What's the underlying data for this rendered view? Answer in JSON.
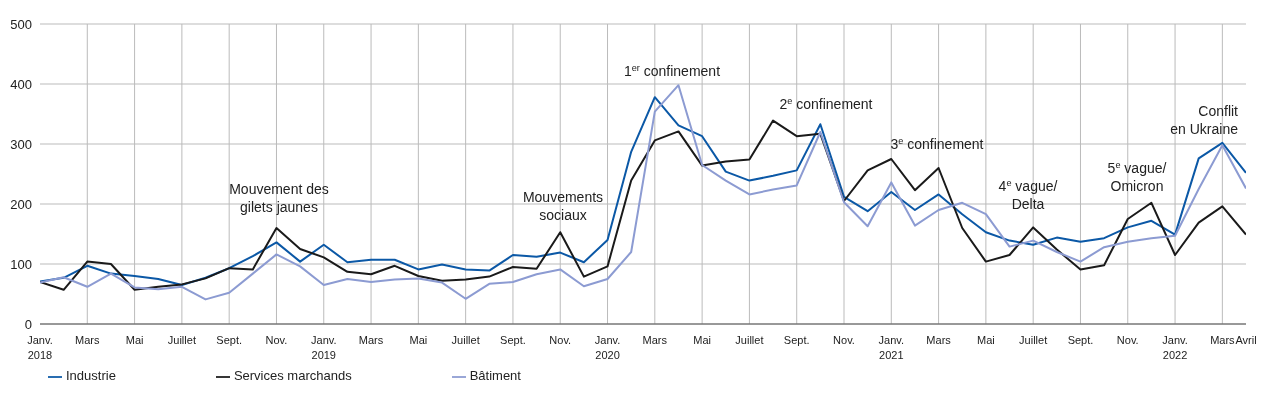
{
  "chart_data": {
    "type": "line",
    "categories": [
      "Janv.\n2018",
      null,
      "Mars",
      null,
      "Mai",
      null,
      "Juillet",
      null,
      "Sept.",
      null,
      "Nov.",
      null,
      "Janv.\n2019",
      null,
      "Mars",
      null,
      "Mai",
      null,
      "Juillet",
      null,
      "Sept.",
      null,
      "Nov.",
      null,
      "Janv.\n2020",
      null,
      "Mars",
      null,
      "Mai",
      null,
      "Juillet",
      null,
      "Sept.",
      null,
      "Nov.",
      null,
      "Janv.\n2021",
      null,
      "Mars",
      null,
      "Mai",
      null,
      "Juillet",
      null,
      "Sept.",
      null,
      "Nov.",
      null,
      "Janv.\n2022",
      null,
      "Mars",
      "Avril"
    ],
    "series": [
      {
        "name": "Industrie",
        "color": "#0b58a6",
        "values": [
          71,
          77,
          97,
          84,
          80,
          75,
          65,
          77,
          93,
          113,
          136,
          104,
          132,
          103,
          107,
          107,
          91,
          99,
          91,
          89,
          115,
          112,
          119,
          103,
          140,
          287,
          378,
          331,
          313,
          254,
          239,
          247,
          256,
          333,
          212,
          188,
          220,
          190,
          216,
          183,
          153,
          139,
          132,
          144,
          137,
          143,
          161,
          172,
          149,
          276,
          302,
          252
        ]
      },
      {
        "name": "Services marchands",
        "color": "#1a1a1a",
        "values": [
          70,
          57,
          104,
          100,
          57,
          62,
          66,
          76,
          93,
          91,
          160,
          125,
          111,
          87,
          83,
          97,
          80,
          72,
          74,
          79,
          95,
          92,
          153,
          79,
          96,
          239,
          306,
          321,
          264,
          271,
          274,
          339,
          313,
          317,
          205,
          256,
          275,
          223,
          260,
          160,
          104,
          115,
          161,
          124,
          91,
          98,
          175,
          202,
          115,
          169,
          196,
          149
        ]
      },
      {
        "name": "Bâtiment",
        "color": "#8c9bd2",
        "values": [
          69,
          78,
          62,
          84,
          61,
          58,
          62,
          41,
          52,
          84,
          116,
          96,
          65,
          75,
          70,
          74,
          76,
          69,
          42,
          67,
          70,
          83,
          91,
          63,
          75,
          120,
          354,
          398,
          265,
          239,
          216,
          224,
          231,
          320,
          203,
          163,
          236,
          164,
          190,
          202,
          183,
          129,
          139,
          120,
          104,
          128,
          137,
          143,
          147,
          225,
          298,
          226
        ]
      }
    ],
    "ylim": [
      0,
      500
    ],
    "yticks": [
      0,
      100,
      200,
      300,
      400,
      500
    ],
    "grid": true,
    "legend": "bottom left",
    "line_style": "solid",
    "marker": "none",
    "annotations": [
      "Mouvement des\ngilets jaunes",
      "Mouvements\nsociaux",
      "1$^{er}$ confinement",
      "2$^{e}$ confinement",
      "3$^{e}$ confinement",
      "4$^{e}$ vague/\nDelta",
      "5$^{e}$ vague/\nOmicron",
      "Conflit\nen Ukraine"
    ]
  }
}
